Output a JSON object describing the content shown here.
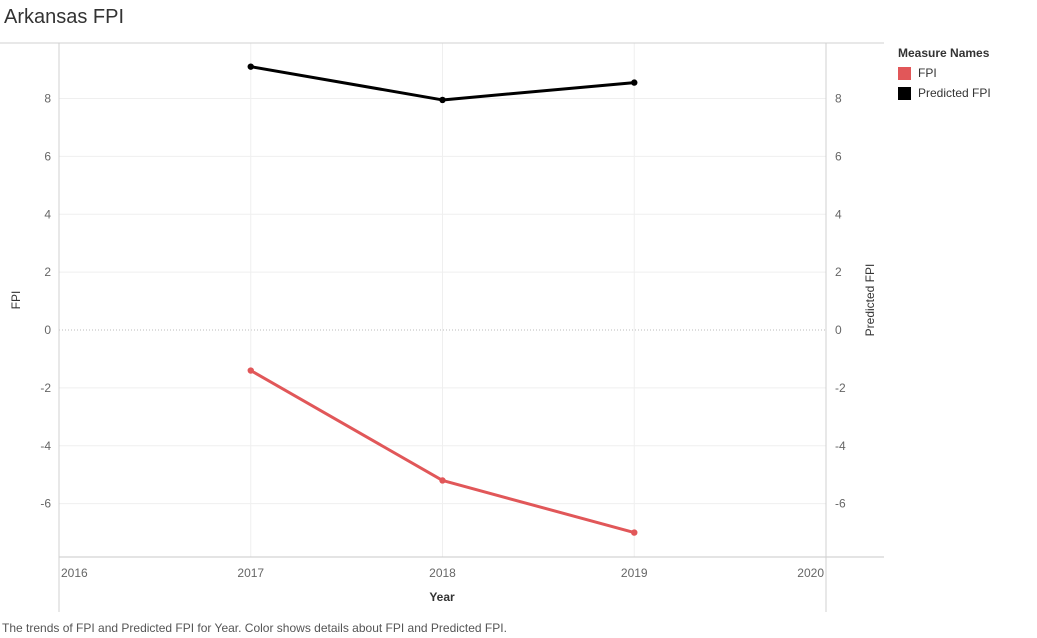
{
  "chart_data": {
    "type": "line",
    "title": "Arkansas FPI",
    "xlabel": "Year",
    "ylabel": "FPI",
    "y2label": "Predicted FPI",
    "x_ticks": [
      2016,
      2017,
      2018,
      2019,
      2020
    ],
    "xlim": [
      2016,
      2020
    ],
    "y_ticks": [
      -6,
      -4,
      -2,
      0,
      2,
      4,
      6,
      8
    ],
    "ylim": [
      -7.8,
      9.9
    ],
    "grid": true,
    "legend_placement": "right",
    "legend_title": "Measure Names",
    "series": [
      {
        "name": "FPI",
        "color": "#e15759",
        "x": [
          2017,
          2018,
          2019
        ],
        "values": [
          -1.4,
          -5.2,
          -7.0
        ]
      },
      {
        "name": "Predicted FPI",
        "color": "#000000",
        "x": [
          2017,
          2018,
          2019
        ],
        "values": [
          9.1,
          7.95,
          8.55
        ]
      }
    ],
    "caption": "The trends of FPI and Predicted FPI for Year.  Color shows details about FPI and Predicted FPI."
  }
}
